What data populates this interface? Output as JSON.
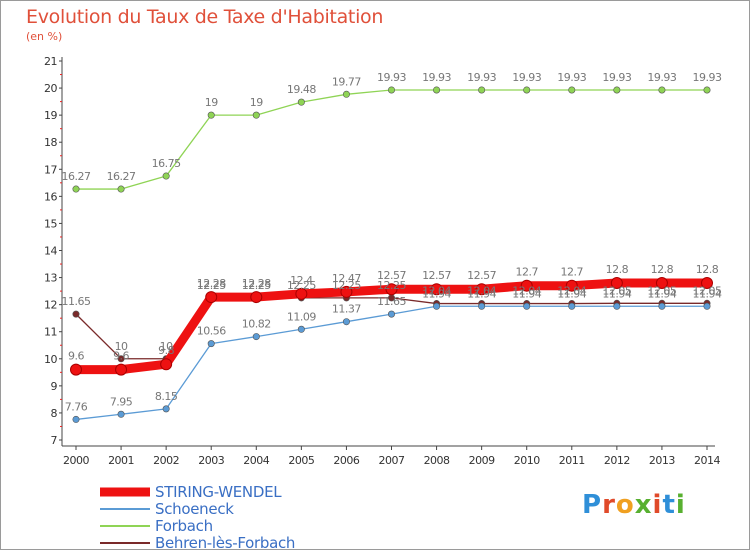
{
  "title": "Evolution du Taux de Taxe d'Habitation",
  "subtitle": "(en %)",
  "logo": {
    "text": "Proxiti",
    "colors": [
      "#2f8fd8",
      "#e04a2a",
      "#f0a020",
      "#58b030",
      "#e04a2a",
      "#2f8fd8",
      "#58b030"
    ]
  },
  "chart_data": {
    "type": "line",
    "x": [
      "2000",
      "2001",
      "2002",
      "2003",
      "2004",
      "2005",
      "2006",
      "2007",
      "2008",
      "2009",
      "2010",
      "2011",
      "2012",
      "2013",
      "2014"
    ],
    "ylim": [
      7,
      21
    ],
    "yticks": [
      "7",
      "8",
      "9",
      "10",
      "11",
      "12",
      "13",
      "14",
      "15",
      "16",
      "17",
      "18",
      "19",
      "20",
      "21"
    ],
    "grid": false,
    "legend": "bottom-left",
    "series": [
      {
        "name": "STIRING-WENDEL",
        "color": "#ee1111",
        "lineWidth": 9,
        "labelColor": "#777777",
        "values": [
          9.6,
          9.6,
          9.8,
          12.28,
          12.28,
          12.4,
          12.47,
          12.57,
          12.57,
          12.57,
          12.7,
          12.7,
          12.8,
          12.8,
          12.8
        ],
        "labels": [
          "9.6",
          "9.6",
          "9.8",
          "12.28",
          "12.28",
          "12.4",
          "12.47",
          "12.57",
          "12.57",
          "12.57",
          "12.7",
          "12.7",
          "12.8",
          "12.8",
          "12.8"
        ]
      },
      {
        "name": "Schoeneck",
        "color": "#5b9bd5",
        "lineWidth": 1.3,
        "labelColor": "#777777",
        "values": [
          7.76,
          7.95,
          8.15,
          10.56,
          10.82,
          11.09,
          11.37,
          11.65,
          11.94,
          11.94,
          11.94,
          11.94,
          11.94,
          11.94,
          11.94
        ],
        "labels": [
          "7.76",
          "7.95",
          "8.15",
          "10.56",
          "10.82",
          "11.09",
          "11.37",
          "11.65",
          "11.94",
          "11.94",
          "11.94",
          "11.94",
          "11.94",
          "11.94",
          "11.94"
        ]
      },
      {
        "name": "Forbach",
        "color": "#8fd455",
        "lineWidth": 1.3,
        "labelColor": "#777777",
        "values": [
          16.27,
          16.27,
          16.75,
          19,
          19,
          19.48,
          19.77,
          19.93,
          19.93,
          19.93,
          19.93,
          19.93,
          19.93,
          19.93,
          19.93
        ],
        "labels": [
          "16.27",
          "16.27",
          "16.75",
          "19",
          "19",
          "19.48",
          "19.77",
          "19.93",
          "19.93",
          "19.93",
          "19.93",
          "19.93",
          "19.93",
          "19.93",
          "19.93"
        ]
      },
      {
        "name": "Behren-lès-Forbach",
        "color": "#7a2a2a",
        "lineWidth": 1.3,
        "labelColor": "#777777",
        "values": [
          11.65,
          10,
          10,
          12.25,
          12.25,
          12.25,
          12.25,
          12.25,
          12.04,
          12.04,
          12.04,
          12.04,
          12.05,
          12.05,
          12.05
        ],
        "labels": [
          "11.65",
          "10",
          "10",
          "12.25",
          "12.25",
          "12.25",
          "12.25",
          "12.25",
          "12.04",
          "12.04",
          "12.04",
          "12.04",
          "12.05",
          "12.05",
          "12.05"
        ]
      }
    ]
  }
}
